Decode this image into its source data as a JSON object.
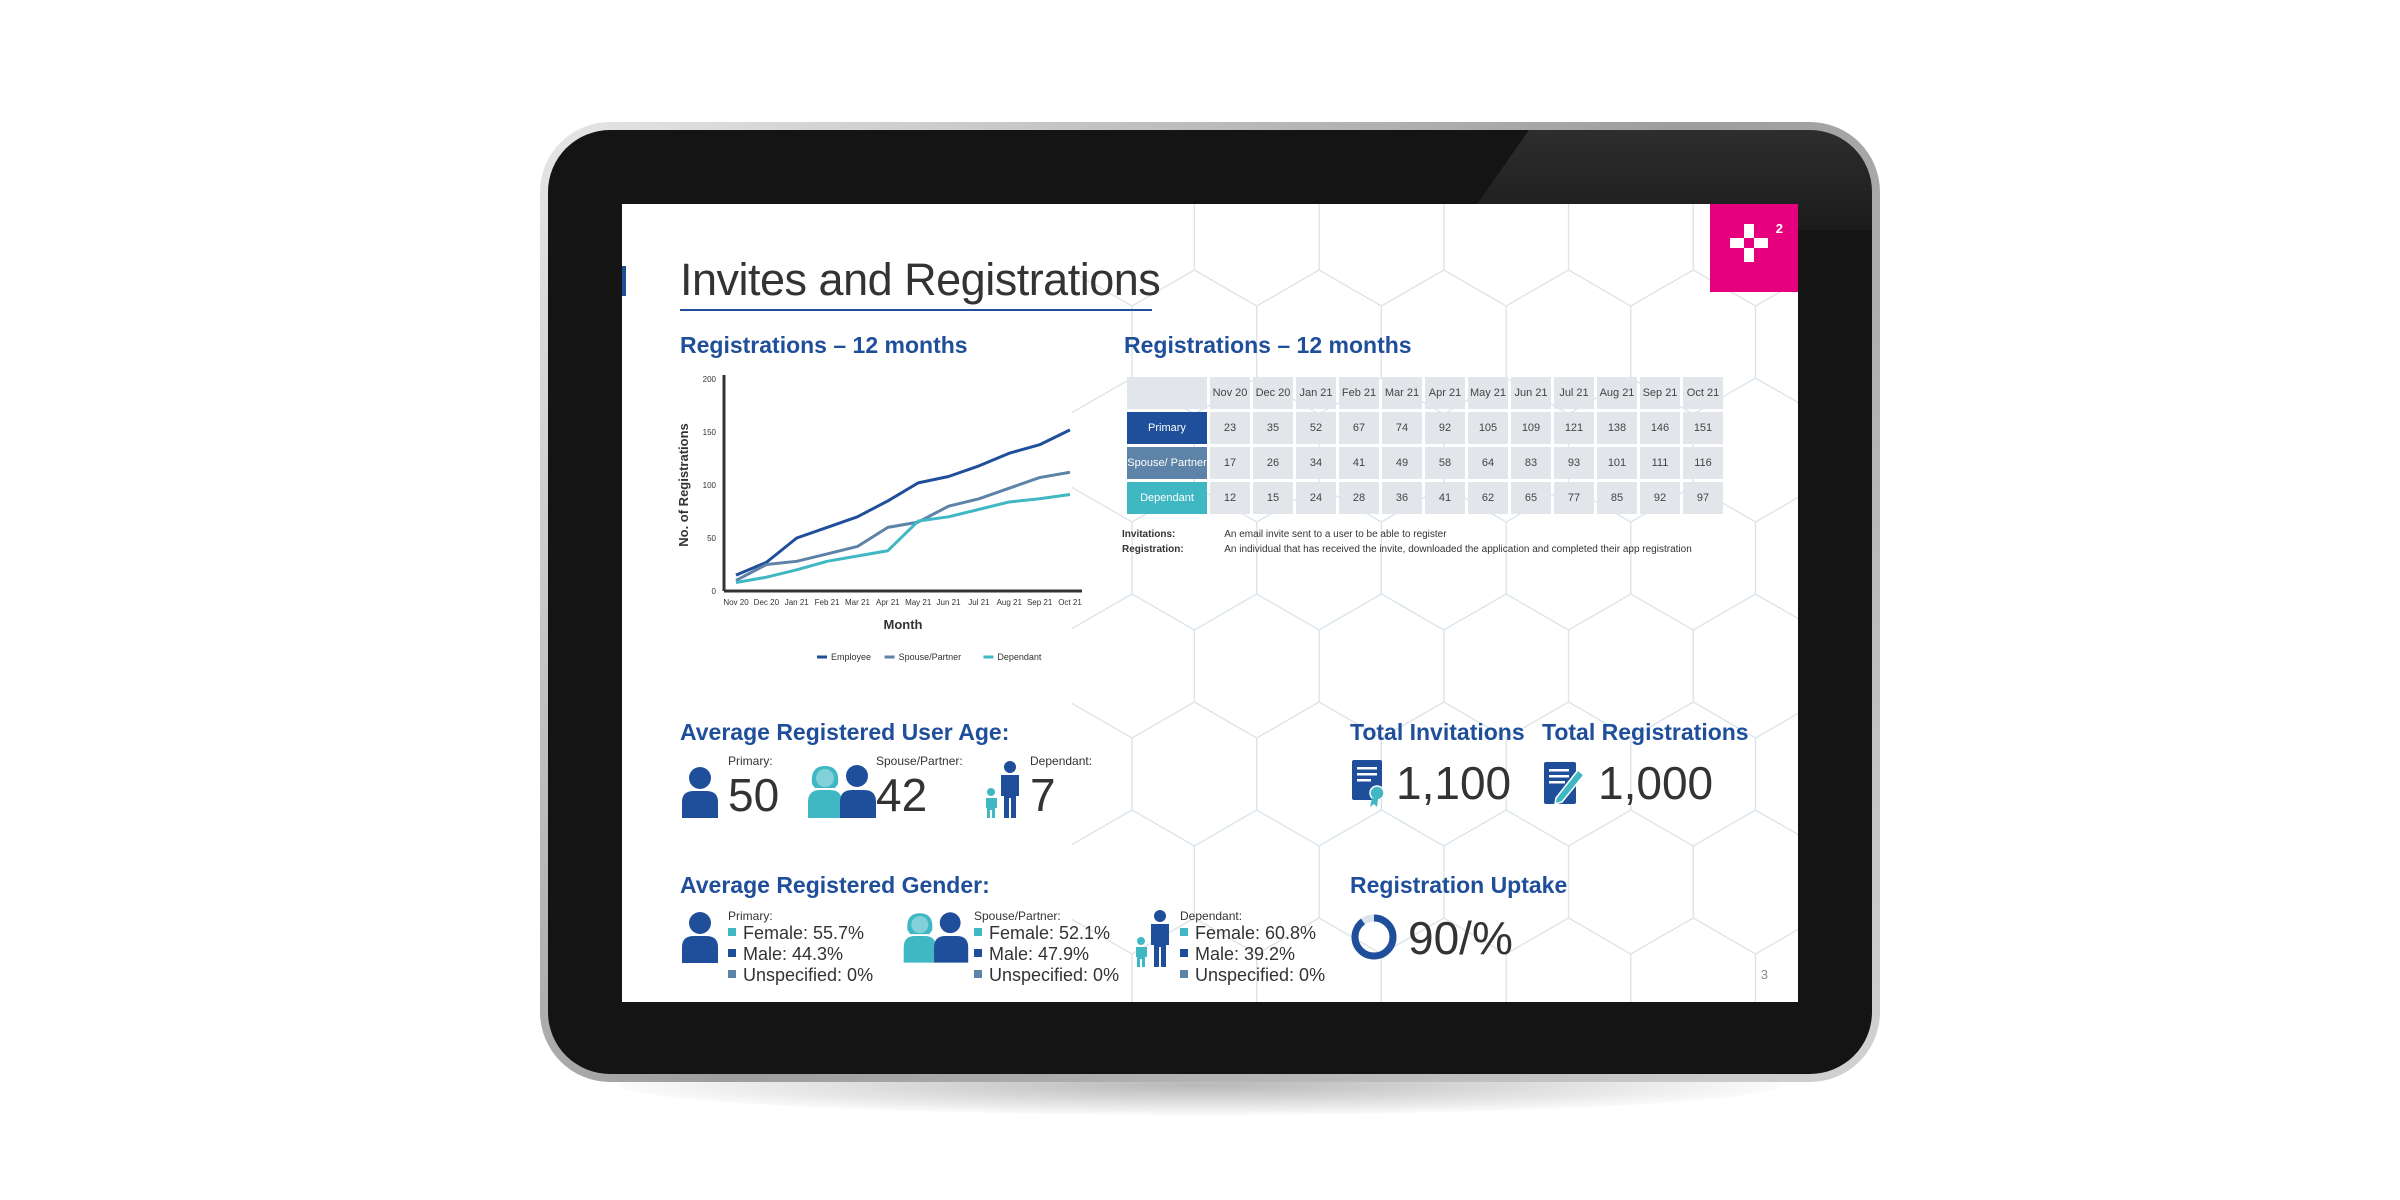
{
  "page": {
    "title": "Invites and Registrations",
    "page_number": "3",
    "logo_sup": "2"
  },
  "colors": {
    "primary": "#1f4e9a",
    "spouse": "#5e83a8",
    "dependant": "#3fb8c4",
    "brand": "#e6007e"
  },
  "chart_section": {
    "heading": "Registrations – 12 months"
  },
  "table_section": {
    "heading": "Registrations – 12 months",
    "months": [
      "Nov 20",
      "Dec 20",
      "Jan 21",
      "Feb 21",
      "Mar 21",
      "Apr 21",
      "May 21",
      "Jun 21",
      "Jul 21",
      "Aug 21",
      "Sep 21",
      "Oct 21"
    ],
    "rows": [
      {
        "label": "Primary",
        "values": [
          "23",
          "35",
          "52",
          "67",
          "74",
          "92",
          "105",
          "109",
          "121",
          "138",
          "146",
          "151"
        ]
      },
      {
        "label": "Spouse/ Partner",
        "values": [
          "17",
          "26",
          "34",
          "41",
          "49",
          "58",
          "64",
          "83",
          "93",
          "101",
          "111",
          "116"
        ]
      },
      {
        "label": "Dependant",
        "values": [
          "12",
          "15",
          "24",
          "28",
          "36",
          "41",
          "62",
          "65",
          "77",
          "85",
          "92",
          "97"
        ]
      }
    ],
    "definitions": [
      {
        "term": "Invitations:",
        "text": "An email invite sent to a user to be able to register"
      },
      {
        "term": "Registration:",
        "text": "An individual that has received the invite, downloaded the application and completed their app registration"
      }
    ]
  },
  "chart_data": {
    "type": "line",
    "x": [
      "Nov 20",
      "Dec 20",
      "Jan 21",
      "Feb 21",
      "Mar 21",
      "Apr 21",
      "May 21",
      "Jun 21",
      "Jul 21",
      "Aug 21",
      "Sep 21",
      "Oct 21"
    ],
    "series": [
      {
        "name": "Employee",
        "color": "#1f4e9a",
        "values": [
          15,
          27,
          50,
          60,
          70,
          85,
          102,
          108,
          118,
          130,
          138,
          152
        ]
      },
      {
        "name": "Spouse/Partner",
        "color": "#5e83a8",
        "values": [
          10,
          25,
          28,
          35,
          42,
          60,
          65,
          80,
          87,
          97,
          107,
          112
        ]
      },
      {
        "name": "Dependant",
        "color": "#3fb8c4",
        "values": [
          8,
          13,
          20,
          28,
          33,
          38,
          66,
          70,
          77,
          84,
          87,
          91
        ]
      }
    ],
    "xlabel": "Month",
    "ylabel": "No. of Registrations",
    "ylim": [
      0,
      200
    ],
    "yticks": [
      "0",
      "50",
      "100",
      "150",
      "200"
    ],
    "legend_position": "bottom"
  },
  "age": {
    "heading": "Average Registered User Age:",
    "items": [
      {
        "label": "Primary:",
        "value": "50"
      },
      {
        "label": "Spouse/Partner:",
        "value": "42"
      },
      {
        "label": "Dependant:",
        "value": "7"
      }
    ]
  },
  "totals": {
    "invitations": {
      "heading": "Total Invitations",
      "value": "1,100"
    },
    "registrations": {
      "heading": "Total Registrations",
      "value": "1,000"
    }
  },
  "gender": {
    "heading": "Average Registered Gender:",
    "groups": [
      {
        "label": "Primary:",
        "female": "Female: 55.7%",
        "male": "Male: 44.3%",
        "unspecified": "Unspecified: 0%"
      },
      {
        "label": "Spouse/Partner:",
        "female": "Female: 52.1%",
        "male": "Male: 47.9%",
        "unspecified": "Unspecified: 0%"
      },
      {
        "label": "Dependant:",
        "female": "Female: 60.8%",
        "male": "Male: 39.2%",
        "unspecified": "Unspecified: 0%"
      }
    ]
  },
  "uptake": {
    "heading": "Registration Uptake",
    "value": "90/%",
    "fraction": 0.9
  }
}
